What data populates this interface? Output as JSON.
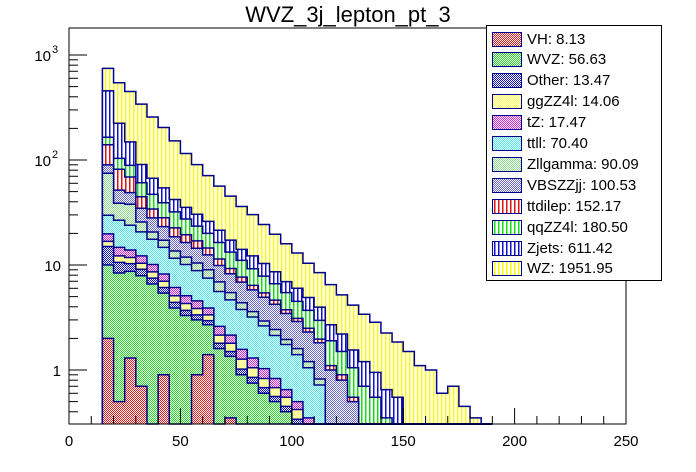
{
  "chart_data": {
    "type": "bar",
    "subtype": "stacked-histogram",
    "title": "WVZ_3j_lepton_pt_3",
    "xlabel": "",
    "ylabel": "",
    "xlim": [
      0,
      250
    ],
    "ylim": [
      0.3,
      1200
    ],
    "yscale": "log",
    "x_ticks": [
      "0",
      "50",
      "100",
      "150",
      "200",
      "250"
    ],
    "x_tick_values": [
      0,
      50,
      100,
      150,
      200,
      250
    ],
    "y_ticks": [
      {
        "value": 1,
        "label": "1"
      },
      {
        "value": 10,
        "label": "10"
      },
      {
        "value": 100,
        "label": "10",
        "exp": "2"
      },
      {
        "value": 1000,
        "label": "10",
        "exp": "3"
      }
    ],
    "bin_width": 5,
    "bin_start": 15,
    "legend_position": "top-right",
    "stack_order": [
      "VH",
      "WVZ",
      "Other",
      "ggZZ4l",
      "tZ",
      "ttll",
      "Zllgamma",
      "VBSZZjj",
      "ttdilep",
      "qqZZ4l",
      "Zjets",
      "WZ"
    ],
    "series": [
      {
        "name": "VH",
        "legend": "VH: 8.13",
        "color": "#e8191a",
        "pattern": "check",
        "values": [
          2.0,
          0.5,
          1.3,
          0.7,
          0.3,
          0.9,
          0.3,
          0.3,
          0.9,
          1.4,
          0.3,
          0.35,
          0,
          0,
          0,
          0,
          0,
          0,
          0,
          0,
          0,
          0,
          0,
          0,
          0,
          0,
          0,
          0,
          0,
          0,
          0,
          0,
          0,
          0,
          0
        ]
      },
      {
        "name": "WVZ",
        "legend": "WVZ: 56.63",
        "color": "#22dd22",
        "pattern": "check",
        "values": [
          8.0,
          7.9,
          7.4,
          7.2,
          6.3,
          4.5,
          3.6,
          3.0,
          2.1,
          1.3,
          1.3,
          1.0,
          0.9,
          0.75,
          0.6,
          0.5,
          0.4,
          0.3,
          0.2,
          0.1,
          0,
          0,
          0,
          0,
          0,
          0,
          0,
          0,
          0,
          0,
          0,
          0,
          0,
          0,
          0
        ]
      },
      {
        "name": "Other",
        "legend": "Other: 13.47",
        "color": "#1111cc",
        "pattern": "check",
        "values": [
          5.0,
          2.2,
          1.6,
          1.2,
          0.9,
          0.7,
          0.5,
          0.4,
          0.35,
          0.25,
          0.2,
          0.15,
          0.12,
          0.1,
          0.08,
          0.06,
          0.05,
          0.04,
          0.03,
          0.02,
          0,
          0,
          0,
          0,
          0,
          0,
          0,
          0,
          0,
          0,
          0,
          0,
          0,
          0,
          0
        ]
      },
      {
        "name": "ggZZ4l",
        "legend": "ggZZ4l: 14.06",
        "color": "#ffff44",
        "pattern": "check",
        "values": [
          1.8,
          1.6,
          1.5,
          1.3,
          1.1,
          0.9,
          0.7,
          0.6,
          0.5,
          0.4,
          0.35,
          0.3,
          0.25,
          0.2,
          0.15,
          0.12,
          0.1,
          0.08,
          0.06,
          0.05,
          0,
          0,
          0,
          0,
          0,
          0,
          0,
          0,
          0,
          0,
          0,
          0,
          0,
          0,
          0
        ]
      },
      {
        "name": "tZ",
        "legend": "tZ: 17.47",
        "color": "#dd22dd",
        "pattern": "check",
        "values": [
          3.0,
          2.5,
          2.1,
          1.8,
          1.5,
          1.2,
          1.0,
          0.8,
          0.7,
          0.55,
          0.45,
          0.35,
          0.3,
          0.25,
          0.2,
          0.15,
          0.1,
          0.08,
          0.06,
          0.05,
          0,
          0,
          0,
          0,
          0,
          0,
          0,
          0,
          0,
          0,
          0,
          0,
          0,
          0,
          0
        ]
      },
      {
        "name": "ttll",
        "legend": "ttll: 70.40",
        "color": "#44eeee",
        "pattern": "check",
        "values": [
          10.0,
          12.0,
          10.0,
          8.5,
          7.5,
          6.5,
          5.5,
          5.0,
          4.3,
          3.6,
          3.0,
          2.5,
          2.2,
          1.9,
          1.6,
          1.3,
          1.1,
          0.9,
          0.7,
          0.5,
          0.3,
          0.2,
          0.1,
          0,
          0,
          0,
          0,
          0,
          0,
          0,
          0,
          0,
          0,
          0,
          0
        ]
      },
      {
        "name": "Zllgamma",
        "legend": "Zllgamma: 90.09",
        "color": "#88d888",
        "pattern": "check",
        "values": [
          45.0,
          12.0,
          14.0,
          5.0,
          3.0,
          2.5,
          2.0,
          1.8,
          1.6,
          1.5,
          1.3,
          0.8,
          0.6,
          0.4,
          0.3,
          0.3,
          0.2,
          0.2,
          0.15,
          0.1,
          0,
          0,
          0,
          0,
          0,
          0,
          0,
          0,
          0,
          0,
          0,
          0,
          0,
          0,
          0
        ]
      },
      {
        "name": "VBSZZjj",
        "legend": "VBSZZjj: 100.53",
        "color": "#6666cc",
        "pattern": "check",
        "values": [
          15.0,
          13.0,
          11.0,
          9.0,
          7.5,
          6.0,
          5.0,
          4.5,
          4.0,
          3.5,
          3.0,
          2.8,
          2.5,
          2.2,
          2.0,
          1.8,
          1.5,
          1.3,
          1.1,
          1.0,
          0.7,
          0.6,
          0.4,
          0.3,
          0.25,
          0.15,
          0.1,
          0,
          0,
          0,
          0,
          0,
          0,
          0,
          0
        ]
      },
      {
        "name": "ttdilep",
        "legend": "ttdilep: 152.17",
        "color": "#dd1111",
        "pattern": "vlines",
        "values": [
          50.0,
          30.0,
          20.0,
          10.0,
          6.0,
          5.0,
          4.0,
          3.0,
          2.5,
          2.0,
          1.5,
          1.0,
          0.8,
          0.6,
          0.5,
          0.4,
          0.3,
          0.2,
          0.2,
          0.15,
          0.1,
          0.1,
          0.05,
          0,
          0,
          0,
          0,
          0,
          0,
          0,
          0,
          0,
          0,
          0,
          0
        ]
      },
      {
        "name": "qqZZ4l",
        "legend": "qqZZ4l: 180.50",
        "color": "#11dd11",
        "pattern": "vlines",
        "values": [
          25.0,
          22.0,
          20.0,
          16.0,
          13.0,
          11.0,
          9.5,
          8.0,
          6.5,
          5.5,
          5.0,
          4.0,
          3.4,
          2.8,
          2.4,
          2.0,
          1.7,
          1.4,
          1.2,
          1.0,
          0.8,
          0.6,
          0.5,
          0.4,
          0.3,
          0.2,
          0.15,
          0.1,
          0,
          0,
          0,
          0,
          0,
          0,
          0
        ]
      },
      {
        "name": "Zjets",
        "legend": "Zjets: 611.42",
        "color": "#1111cc",
        "pattern": "vlines",
        "values": [
          290.0,
          120.0,
          60.0,
          30.0,
          20.0,
          15.0,
          10.0,
          8.0,
          7.0,
          6.0,
          5.0,
          4.0,
          3.0,
          3.0,
          2.5,
          2.0,
          1.5,
          1.5,
          1.2,
          1.0,
          0.8,
          0.7,
          0.5,
          0.5,
          0.4,
          0.3,
          0.3,
          0.2,
          0.1,
          0.1,
          0,
          0,
          0,
          0,
          0
        ]
      },
      {
        "name": "WZ",
        "legend": "WZ: 1951.95",
        "color": "#ffff00",
        "pattern": "vlines",
        "values": [
          290.0,
          320.0,
          300.0,
          250.0,
          190.0,
          150.0,
          110.0,
          80.0,
          60.0,
          45.0,
          35.0,
          28.0,
          22.0,
          18.0,
          14.0,
          11.0,
          9.0,
          7.0,
          5.5,
          4.5,
          3.8,
          3.0,
          2.6,
          2.2,
          1.9,
          1.6,
          1.3,
          1.2,
          1.0,
          0.9,
          0.6,
          0.7,
          0.45,
          0.35,
          0.3
        ]
      }
    ]
  }
}
